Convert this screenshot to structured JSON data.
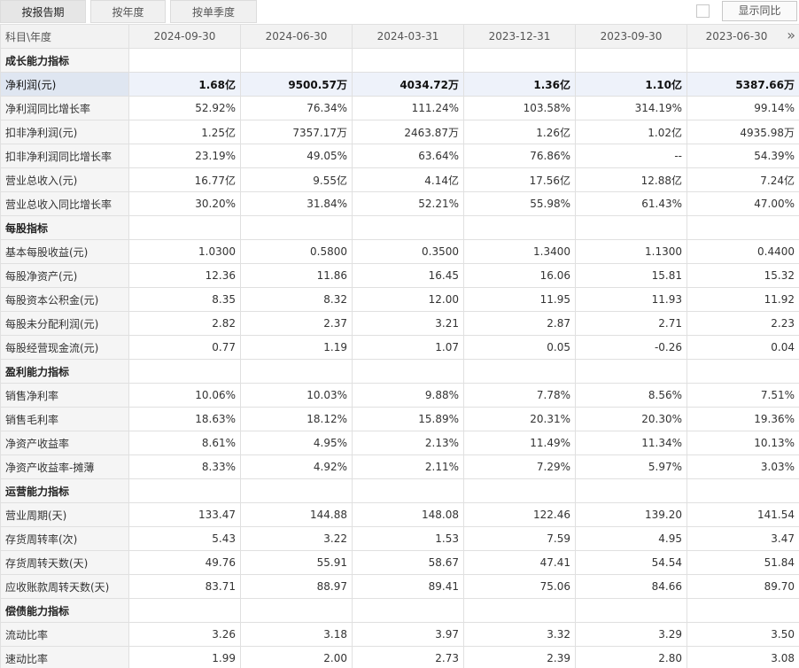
{
  "tabs": [
    "按报告期",
    "按年度",
    "按单季度"
  ],
  "yoy_label": "显示同比",
  "more_icon": "»",
  "header": {
    "first": "科目\\年度",
    "dates": [
      "2024-09-30",
      "2024-06-30",
      "2024-03-31",
      "2023-12-31",
      "2023-09-30",
      "2023-06-30"
    ]
  },
  "rows": [
    {
      "label": "成长能力指标",
      "section": true,
      "values": [
        "",
        "",
        "",
        "",
        "",
        ""
      ]
    },
    {
      "label": "净利润(元)",
      "highlight": true,
      "values": [
        "1.68亿",
        "9500.57万",
        "4034.72万",
        "1.36亿",
        "1.10亿",
        "5387.66万"
      ]
    },
    {
      "label": "净利润同比增长率",
      "values": [
        "52.92%",
        "76.34%",
        "111.24%",
        "103.58%",
        "314.19%",
        "99.14%"
      ]
    },
    {
      "label": "扣非净利润(元)",
      "values": [
        "1.25亿",
        "7357.17万",
        "2463.87万",
        "1.26亿",
        "1.02亿",
        "4935.98万"
      ]
    },
    {
      "label": "扣非净利润同比增长率",
      "values": [
        "23.19%",
        "49.05%",
        "63.64%",
        "76.86%",
        "--",
        "54.39%"
      ]
    },
    {
      "label": "营业总收入(元)",
      "values": [
        "16.77亿",
        "9.55亿",
        "4.14亿",
        "17.56亿",
        "12.88亿",
        "7.24亿"
      ]
    },
    {
      "label": "营业总收入同比增长率",
      "values": [
        "30.20%",
        "31.84%",
        "52.21%",
        "55.98%",
        "61.43%",
        "47.00%"
      ]
    },
    {
      "label": "每股指标",
      "section": true,
      "values": [
        "",
        "",
        "",
        "",
        "",
        ""
      ]
    },
    {
      "label": "基本每股收益(元)",
      "values": [
        "1.0300",
        "0.5800",
        "0.3500",
        "1.3400",
        "1.1300",
        "0.4400"
      ]
    },
    {
      "label": "每股净资产(元)",
      "values": [
        "12.36",
        "11.86",
        "16.45",
        "16.06",
        "15.81",
        "15.32"
      ]
    },
    {
      "label": "每股资本公积金(元)",
      "values": [
        "8.35",
        "8.32",
        "12.00",
        "11.95",
        "11.93",
        "11.92"
      ]
    },
    {
      "label": "每股未分配利润(元)",
      "values": [
        "2.82",
        "2.37",
        "3.21",
        "2.87",
        "2.71",
        "2.23"
      ]
    },
    {
      "label": "每股经营现金流(元)",
      "values": [
        "0.77",
        "1.19",
        "1.07",
        "0.05",
        "-0.26",
        "0.04"
      ]
    },
    {
      "label": "盈利能力指标",
      "section": true,
      "values": [
        "",
        "",
        "",
        "",
        "",
        ""
      ]
    },
    {
      "label": "销售净利率",
      "values": [
        "10.06%",
        "10.03%",
        "9.88%",
        "7.78%",
        "8.56%",
        "7.51%"
      ]
    },
    {
      "label": "销售毛利率",
      "values": [
        "18.63%",
        "18.12%",
        "15.89%",
        "20.31%",
        "20.30%",
        "19.36%"
      ]
    },
    {
      "label": "净资产收益率",
      "values": [
        "8.61%",
        "4.95%",
        "2.13%",
        "11.49%",
        "11.34%",
        "10.13%"
      ]
    },
    {
      "label": "净资产收益率-摊薄",
      "values": [
        "8.33%",
        "4.92%",
        "2.11%",
        "7.29%",
        "5.97%",
        "3.03%"
      ]
    },
    {
      "label": "运营能力指标",
      "section": true,
      "values": [
        "",
        "",
        "",
        "",
        "",
        ""
      ]
    },
    {
      "label": "营业周期(天)",
      "values": [
        "133.47",
        "144.88",
        "148.08",
        "122.46",
        "139.20",
        "141.54"
      ]
    },
    {
      "label": "存货周转率(次)",
      "values": [
        "5.43",
        "3.22",
        "1.53",
        "7.59",
        "4.95",
        "3.47"
      ]
    },
    {
      "label": "存货周转天数(天)",
      "values": [
        "49.76",
        "55.91",
        "58.67",
        "47.41",
        "54.54",
        "51.84"
      ]
    },
    {
      "label": "应收账款周转天数(天)",
      "values": [
        "83.71",
        "88.97",
        "89.41",
        "75.06",
        "84.66",
        "89.70"
      ]
    },
    {
      "label": "偿债能力指标",
      "section": true,
      "values": [
        "",
        "",
        "",
        "",
        "",
        ""
      ]
    },
    {
      "label": "流动比率",
      "values": [
        "3.26",
        "3.18",
        "3.97",
        "3.32",
        "3.29",
        "3.50"
      ]
    },
    {
      "label": "速动比率",
      "values": [
        "1.99",
        "2.00",
        "2.73",
        "2.39",
        "2.80",
        "3.08"
      ]
    }
  ]
}
